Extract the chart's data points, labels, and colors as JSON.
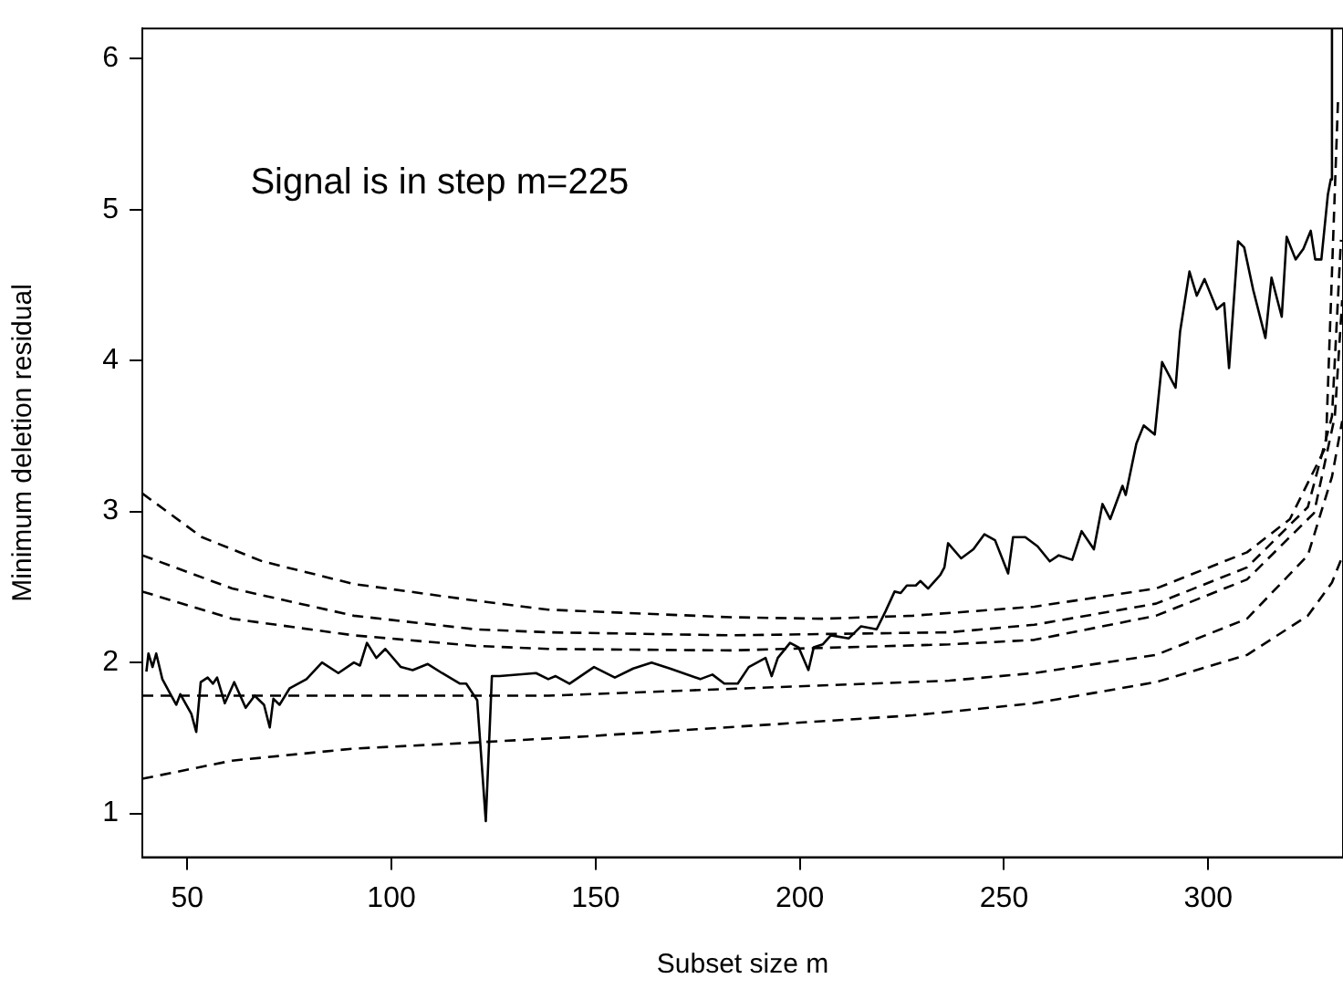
{
  "chart_data": {
    "type": "line",
    "xlabel": "Subset size m",
    "ylabel": "Minimum deletion residual",
    "annotations": [
      "Signal is in step m=225"
    ],
    "xlim": [
      39,
      333
    ],
    "ylim": [
      0.71,
      6.2
    ],
    "xticks": [
      50,
      100,
      150,
      200,
      250,
      300
    ],
    "yticks": [
      1,
      2,
      3,
      4,
      5,
      6
    ],
    "grid": false,
    "legend": false,
    "marker": "none",
    "series": [
      {
        "color": "#000000",
        "line_style": "solid",
        "x": [
          40,
          40.5,
          41.5,
          42.4,
          43.9,
          47.3,
          48.3,
          51,
          52.2,
          53.3,
          55,
          56.3,
          57.3,
          59.2,
          61.5,
          64.3,
          66.5,
          68.8,
          70.2,
          71.1,
          72.6,
          75.1,
          79.2,
          83,
          87,
          90.8,
          92.3,
          94,
          96.3,
          98.5,
          102.3,
          105.2,
          108.9,
          112.4,
          116.8,
          118.3,
          121,
          123.1,
          124.6,
          126.5,
          135.4,
          138.4,
          140.2,
          143.6,
          149.6,
          154.7,
          159.2,
          163.7,
          168.2,
          175.6,
          178.6,
          181.5,
          184.8,
          187.5,
          191.6,
          193.1,
          194.6,
          197.6,
          199.7,
          202.1,
          203.4,
          205.6,
          207.6,
          212,
          215,
          218.8,
          221,
          223.2,
          224.7,
          226.2,
          228.4,
          229.5,
          231.4,
          234.4,
          235.4,
          236.3,
          239.5,
          242.5,
          245.2,
          247.8,
          251,
          252.2,
          255.2,
          258.2,
          261.2,
          263.4,
          266.7,
          269,
          272,
          274.1,
          276,
          279,
          279.8,
          282.4,
          284.2,
          286.9,
          288.7,
          292,
          293.1,
          295.4,
          297.2,
          299.1,
          302.1,
          303.9,
          305.1,
          307.3,
          308.8,
          311,
          314,
          315.5,
          318,
          319.2,
          321.4,
          323.3,
          325.1,
          326.2,
          327.7,
          329.3,
          330,
          330.3
        ],
        "values": [
          1.94,
          2.06,
          1.97,
          2.06,
          1.89,
          1.72,
          1.79,
          1.66,
          1.54,
          1.87,
          1.9,
          1.86,
          1.9,
          1.73,
          1.87,
          1.7,
          1.78,
          1.72,
          1.57,
          1.76,
          1.72,
          1.83,
          1.89,
          2.0,
          1.93,
          2.0,
          1.98,
          2.13,
          2.03,
          2.09,
          1.97,
          1.95,
          1.99,
          1.93,
          1.86,
          1.86,
          1.75,
          0.95,
          1.91,
          1.91,
          1.93,
          1.89,
          1.91,
          1.86,
          1.97,
          1.9,
          1.96,
          2.0,
          1.96,
          1.89,
          1.92,
          1.86,
          1.86,
          1.97,
          2.03,
          1.91,
          2.03,
          2.13,
          2.1,
          1.95,
          2.1,
          2.12,
          2.18,
          2.16,
          2.24,
          2.22,
          2.34,
          2.47,
          2.46,
          2.51,
          2.51,
          2.54,
          2.49,
          2.58,
          2.63,
          2.79,
          2.69,
          2.75,
          2.85,
          2.81,
          2.59,
          2.83,
          2.83,
          2.77,
          2.67,
          2.71,
          2.68,
          2.87,
          2.75,
          3.05,
          2.95,
          3.17,
          3.11,
          3.45,
          3.57,
          3.51,
          3.99,
          3.82,
          4.19,
          4.59,
          4.43,
          4.54,
          4.34,
          4.38,
          3.95,
          4.79,
          4.75,
          4.47,
          4.15,
          4.55,
          4.29,
          4.82,
          4.67,
          4.74,
          4.86,
          4.67,
          4.67,
          5.1,
          5.2,
          6.2
        ]
      },
      {
        "color": "#000000",
        "line_style": "dashed",
        "x": [
          39,
          53.6,
          68.4,
          90.8,
          120.5,
          138.4,
          183,
          205.4,
          227.7,
          257.4,
          287.2,
          309.5,
          320,
          328.8,
          331.8
        ],
        "values": [
          3.12,
          2.83,
          2.67,
          2.52,
          2.41,
          2.35,
          2.3,
          2.29,
          2.31,
          2.37,
          2.49,
          2.73,
          2.95,
          3.43,
          5.74
        ]
      },
      {
        "color": "#000000",
        "line_style": "dashed",
        "x": [
          39,
          61,
          90.8,
          120.5,
          138.4,
          183,
          236.6,
          257.4,
          287.2,
          309.5,
          324.4,
          330.3,
          332.5
        ],
        "values": [
          2.71,
          2.49,
          2.31,
          2.22,
          2.2,
          2.18,
          2.2,
          2.25,
          2.39,
          2.63,
          3.03,
          3.63,
          4.8
        ]
      },
      {
        "color": "#000000",
        "line_style": "dashed",
        "x": [
          39,
          61,
          90.8,
          120.5,
          138.4,
          183,
          236.6,
          257.4,
          287.2,
          309.5,
          325.9,
          331,
          332.8
        ],
        "values": [
          2.47,
          2.29,
          2.18,
          2.11,
          2.09,
          2.08,
          2.12,
          2.15,
          2.31,
          2.55,
          2.99,
          3.63,
          4.4
        ]
      },
      {
        "color": "#000000",
        "line_style": "dashed",
        "x": [
          39,
          120.5,
          138.4,
          236.6,
          257.4,
          287.2,
          309.5,
          324.4,
          330.3,
          332.8
        ],
        "values": [
          1.78,
          1.78,
          1.78,
          1.88,
          1.93,
          2.05,
          2.29,
          2.71,
          3.23,
          3.6
        ]
      },
      {
        "color": "#000000",
        "line_style": "dashed",
        "x": [
          39,
          61,
          90.8,
          120.5,
          147.3,
          227.7,
          257.4,
          287.2,
          309.5,
          324.4,
          330.3,
          332.8
        ],
        "values": [
          1.23,
          1.35,
          1.43,
          1.47,
          1.51,
          1.65,
          1.73,
          1.87,
          2.05,
          2.31,
          2.53,
          2.7
        ]
      }
    ]
  }
}
